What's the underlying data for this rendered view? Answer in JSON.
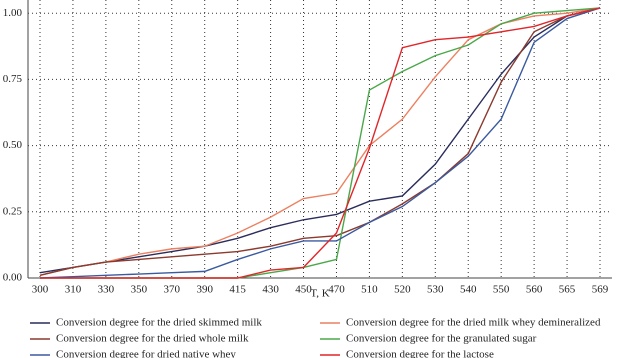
{
  "chart_data": {
    "type": "line",
    "x_label": "T, K",
    "categories": [
      "300",
      "310",
      "330",
      "350",
      "370",
      "390",
      "415",
      "430",
      "450",
      "470",
      "510",
      "520",
      "530",
      "540",
      "550",
      "560",
      "565",
      "569"
    ],
    "ylim": [
      0,
      1.05
    ],
    "yticks": [
      {
        "value": 0,
        "label": "0.00"
      },
      {
        "value": 0.25,
        "label": "0.25"
      },
      {
        "value": 0.5,
        "label": "0.50"
      },
      {
        "value": 0.75,
        "label": "0.75"
      },
      {
        "value": 1,
        "label": "1.00"
      }
    ],
    "grid": true,
    "legend": "bottom",
    "series": [
      {
        "name": "Conversion degree for the dried skimmed milk",
        "color": "#2a2d5c",
        "values": [
          0.02,
          0.04,
          0.06,
          0.08,
          0.1,
          0.12,
          0.15,
          0.19,
          0.22,
          0.24,
          0.29,
          0.31,
          0.43,
          0.6,
          0.77,
          0.91,
          0.99,
          1.02
        ]
      },
      {
        "name": "Conversion degree for the dried milk whey demineralized",
        "color": "#ec8060",
        "values": [
          0.01,
          0.04,
          0.06,
          0.09,
          0.11,
          0.12,
          0.17,
          0.23,
          0.3,
          0.32,
          0.5,
          0.6,
          0.76,
          0.9,
          0.96,
          0.99,
          1.0,
          1.02
        ]
      },
      {
        "name": "Conversion degree for the dried whole milk",
        "color": "#8b3a2e",
        "values": [
          0.01,
          0.04,
          0.06,
          0.07,
          0.08,
          0.09,
          0.1,
          0.12,
          0.15,
          0.16,
          0.21,
          0.28,
          0.36,
          0.47,
          0.74,
          0.93,
          0.99,
          1.02
        ]
      },
      {
        "name": "Conversion degree for the granulated sugar",
        "color": "#4aa84a",
        "values": [
          0,
          0,
          0,
          0,
          0,
          0,
          0,
          0.02,
          0.04,
          0.07,
          0.71,
          0.78,
          0.84,
          0.88,
          0.96,
          1.0,
          1.01,
          1.02
        ]
      },
      {
        "name": "Conversion degree for dried native whey",
        "color": "#3a5aa0",
        "values": [
          0,
          0.005,
          0.01,
          0.015,
          0.02,
          0.025,
          0.07,
          0.11,
          0.14,
          0.14,
          0.21,
          0.27,
          0.36,
          0.46,
          0.6,
          0.89,
          0.98,
          1.02
        ]
      },
      {
        "name": "Conversion degree for the lactose",
        "color": "#e0262a",
        "values": [
          0,
          0,
          0,
          0,
          0,
          0,
          0,
          0.03,
          0.04,
          0.17,
          0.49,
          0.87,
          0.9,
          0.91,
          0.93,
          0.95,
          0.99,
          1.02
        ]
      }
    ]
  }
}
